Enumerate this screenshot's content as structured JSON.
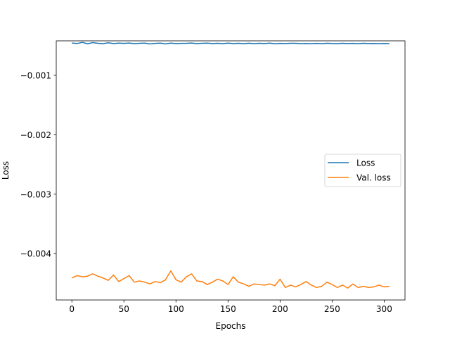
{
  "chart_data": {
    "type": "line",
    "xlabel": "Epochs",
    "ylabel": "Loss",
    "xlim": [
      -15,
      320
    ],
    "ylim": [
      -0.00478,
      -0.00042
    ],
    "xticks": [
      0,
      50,
      100,
      150,
      200,
      250,
      300
    ],
    "xtick_labels": [
      "0",
      "50",
      "100",
      "150",
      "200",
      "250",
      "300"
    ],
    "yticks": [
      -0.001,
      -0.002,
      -0.003,
      -0.004
    ],
    "ytick_labels": [
      "−0.001",
      "−0.002",
      "−0.003",
      "−0.004"
    ],
    "grid": false,
    "legend_position": "center-right",
    "x": [
      0,
      5,
      10,
      15,
      20,
      25,
      30,
      35,
      40,
      45,
      50,
      55,
      60,
      65,
      70,
      75,
      80,
      85,
      90,
      95,
      100,
      105,
      110,
      115,
      120,
      125,
      130,
      135,
      140,
      145,
      150,
      155,
      160,
      165,
      170,
      175,
      180,
      185,
      190,
      195,
      200,
      205,
      210,
      215,
      220,
      225,
      230,
      235,
      240,
      245,
      250,
      255,
      260,
      265,
      270,
      275,
      280,
      285,
      290,
      295,
      300,
      305
    ],
    "series": [
      {
        "name": "Loss",
        "color": "#1f77b4",
        "values": [
          -0.000457,
          -0.000465,
          -0.000445,
          -0.00047,
          -0.00045,
          -0.000462,
          -0.000468,
          -0.000452,
          -0.000466,
          -0.000459,
          -0.000463,
          -0.000457,
          -0.000468,
          -0.000461,
          -0.000459,
          -0.000472,
          -0.000463,
          -0.000458,
          -0.00047,
          -0.000459,
          -0.000466,
          -0.000463,
          -0.000461,
          -0.000457,
          -0.000467,
          -0.000462,
          -0.000459,
          -0.000466,
          -0.000462,
          -0.000468,
          -0.000458,
          -0.000466,
          -0.000461,
          -0.000467,
          -0.00046,
          -0.000468,
          -0.000462,
          -0.000466,
          -0.000459,
          -0.000469,
          -0.000463,
          -0.000466,
          -0.000461,
          -0.000462,
          -0.000468,
          -0.000464,
          -0.000467,
          -0.000463,
          -0.000467,
          -0.000461,
          -0.000465,
          -0.000467,
          -0.000462,
          -0.000466,
          -0.000463,
          -0.000468,
          -0.000462,
          -0.000466,
          -0.000464,
          -0.000467,
          -0.000465,
          -0.000468
        ]
      },
      {
        "name": "Val. loss",
        "color": "#ff7f0e",
        "values": [
          -0.00441,
          -0.00437,
          -0.00439,
          -0.00438,
          -0.00434,
          -0.00438,
          -0.00441,
          -0.00445,
          -0.00436,
          -0.00447,
          -0.00442,
          -0.00437,
          -0.00448,
          -0.00446,
          -0.00448,
          -0.00451,
          -0.00447,
          -0.00449,
          -0.00444,
          -0.00429,
          -0.00444,
          -0.00448,
          -0.00439,
          -0.00434,
          -0.00446,
          -0.00447,
          -0.00452,
          -0.00448,
          -0.00443,
          -0.00446,
          -0.00452,
          -0.00439,
          -0.00448,
          -0.00451,
          -0.00455,
          -0.00451,
          -0.00452,
          -0.00453,
          -0.00451,
          -0.00454,
          -0.00443,
          -0.00457,
          -0.00453,
          -0.00456,
          -0.00452,
          -0.00447,
          -0.00453,
          -0.00457,
          -0.00455,
          -0.00448,
          -0.00452,
          -0.00457,
          -0.00453,
          -0.00458,
          -0.00451,
          -0.00457,
          -0.00455,
          -0.00457,
          -0.00456,
          -0.00453,
          -0.00456,
          -0.00455
        ]
      }
    ]
  }
}
